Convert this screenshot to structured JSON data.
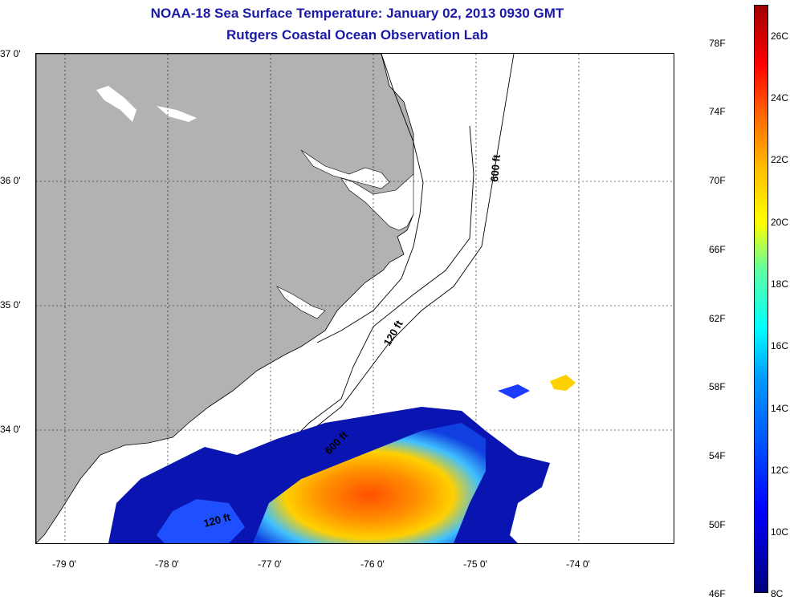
{
  "header": {
    "title": "NOAA-18 Sea Surface Temperature:  January 02, 2013 0930 GMT",
    "subtitle": "Rutgers Coastal Ocean Observation Lab"
  },
  "map": {
    "lat_labels": [
      "37 0'",
      "36 0'",
      "35 0'",
      "34 0'"
    ],
    "lon_labels": [
      "-79 0'",
      "-78 0'",
      "-77 0'",
      "-76 0'",
      "-75 0'",
      "-74 0'"
    ],
    "contour_labels": [
      "600 ft",
      "120 ft",
      "600 ft",
      "120 ft"
    ],
    "colors": {
      "land": "#b2b2b2",
      "ocean": "#ffffff",
      "coast": "#000000"
    }
  },
  "colorbar": {
    "f_labels": [
      "78F",
      "74F",
      "70F",
      "66F",
      "62F",
      "58F",
      "54F",
      "50F",
      "46F"
    ],
    "c_labels": [
      "26C",
      "24C",
      "22C",
      "20C",
      "18C",
      "16C",
      "14C",
      "12C",
      "10C",
      "8C"
    ]
  }
}
